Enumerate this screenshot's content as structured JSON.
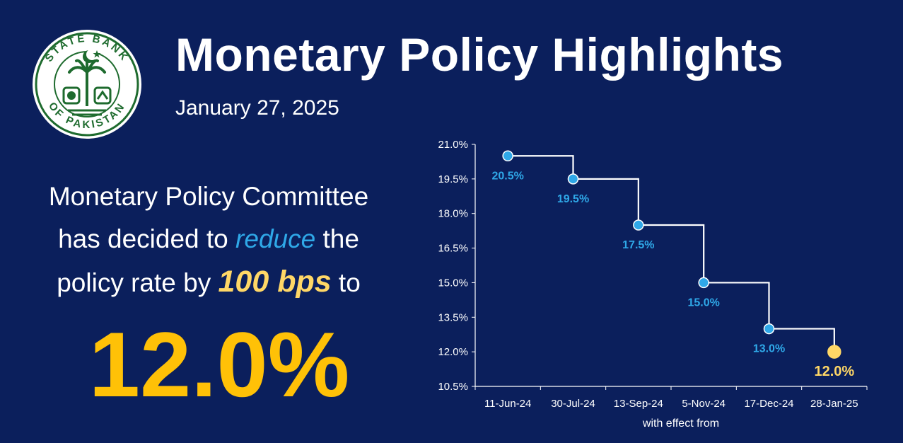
{
  "header": {
    "title": "Monetary Policy Highlights",
    "date": "January 27, 2025"
  },
  "logo": {
    "text_top": "STATE BANK",
    "text_bottom": "OF PAKISTAN"
  },
  "statement": {
    "line1": "Monetary Policy Committee",
    "line2_prefix": "has decided to",
    "line2_emphasis": "reduce",
    "line2_suffix": "the",
    "line3_prefix": "policy rate by",
    "line3_emphasis": "100 bps",
    "line3_suffix": "to"
  },
  "policy_rate": "12.0%",
  "colors": {
    "background": "#0b1f5c",
    "accent_blue": "#2fa8e8",
    "accent_gold": "#ffc107",
    "highlight_gold": "#ffd766",
    "logo_green": "#1e6b2e"
  },
  "chart_data": {
    "type": "line",
    "step": true,
    "categories": [
      "11-Jun-24",
      "30-Jul-24",
      "13-Sep-24",
      "5-Nov-24",
      "17-Dec-24",
      "28-Jan-25"
    ],
    "values": [
      20.5,
      19.5,
      17.5,
      15.0,
      13.0,
      12.0
    ],
    "data_labels": [
      "20.5%",
      "19.5%",
      "17.5%",
      "15.0%",
      "13.0%",
      "12.0%"
    ],
    "xlabel": "with effect  from",
    "ylabel": "",
    "ylim": [
      10.5,
      21.0
    ],
    "yticks": [
      10.5,
      12.0,
      13.5,
      15.0,
      16.5,
      18.0,
      19.5,
      21.0
    ],
    "ytick_labels": [
      "10.5%",
      "12.0%",
      "13.5%",
      "15.0%",
      "16.5%",
      "18.0%",
      "19.5%",
      "21.0%"
    ],
    "grid": false,
    "highlight_last": true
  }
}
